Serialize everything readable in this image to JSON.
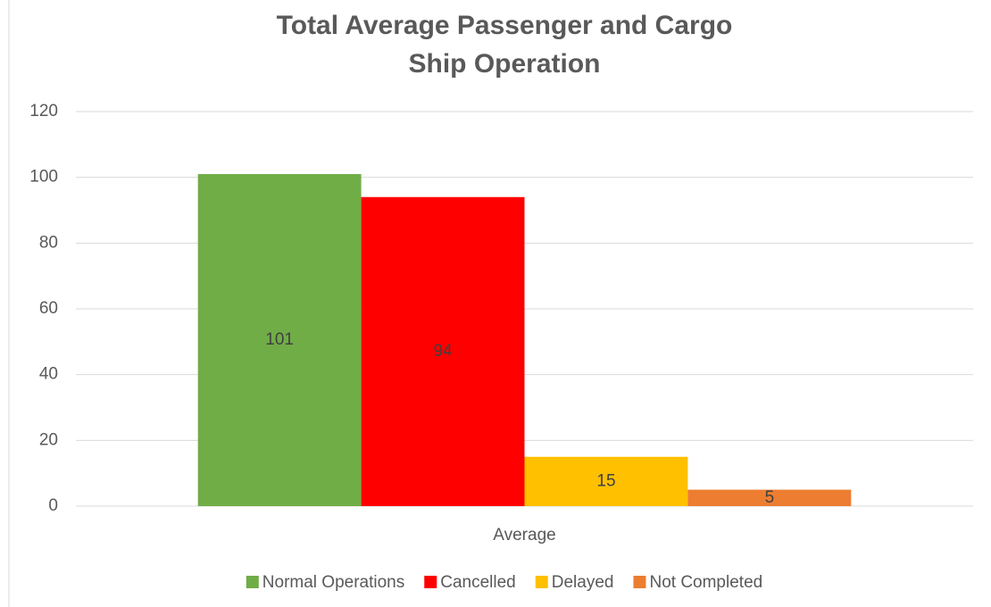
{
  "chart_data": {
    "type": "bar",
    "title": [
      "Total Average Passenger and Cargo",
      "Ship Operation"
    ],
    "categories": [
      "Average"
    ],
    "series": [
      {
        "name": "Normal Operations",
        "color": "#70ad47",
        "values": [
          101
        ]
      },
      {
        "name": "Cancelled",
        "color": "#ff0000",
        "values": [
          94
        ]
      },
      {
        "name": "Delayed",
        "color": "#ffc000",
        "values": [
          15
        ]
      },
      {
        "name": "Not Completed",
        "color": "#ed7d31",
        "values": [
          5
        ]
      }
    ],
    "ylim": [
      0,
      120
    ],
    "yticks": [
      0,
      20,
      40,
      60,
      80,
      100,
      120
    ],
    "grid": true,
    "legend": "bottom",
    "data_labels": true
  }
}
